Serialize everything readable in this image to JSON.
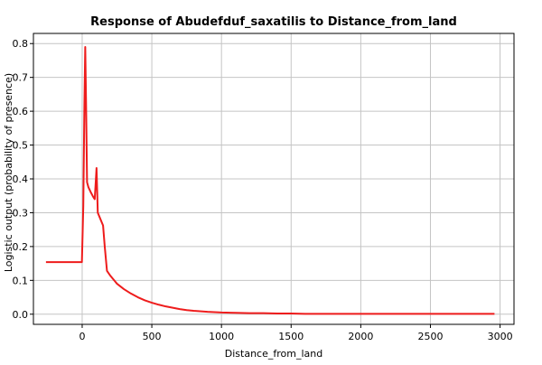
{
  "chart_data": {
    "type": "line",
    "title": "Response of Abudefduf_saxatilis to Distance_from_land",
    "xlabel": "Distance_from_land",
    "ylabel": "Logistic output (probability of presence)",
    "xlim": [
      -350,
      3100
    ],
    "ylim": [
      -0.03,
      0.83
    ],
    "xticks": [
      0,
      500,
      1000,
      1500,
      2000,
      2500,
      3000
    ],
    "yticks": [
      0.0,
      0.1,
      0.2,
      0.3,
      0.4,
      0.5,
      0.6,
      0.7,
      0.8
    ],
    "xtick_labels": [
      "0",
      "500",
      "1000",
      "1500",
      "2000",
      "2500",
      "3000"
    ],
    "ytick_labels": [
      "0.0",
      "0.1",
      "0.2",
      "0.3",
      "0.4",
      "0.5",
      "0.6",
      "0.7",
      "0.8"
    ],
    "grid": true,
    "series": [
      {
        "color": "#ee1c1c",
        "x": [
          -260,
          -2,
          8,
          16,
          22,
          28,
          35,
          45,
          60,
          75,
          85,
          90,
          98,
          103,
          108,
          112,
          150,
          162,
          178,
          200,
          250,
          300,
          350,
          400,
          450,
          500,
          550,
          600,
          650,
          700,
          750,
          800,
          900,
          1000,
          1100,
          1200,
          1300,
          1400,
          1500,
          1600,
          1800,
          2000,
          2200,
          2400,
          2600,
          2800,
          2960
        ],
        "y": [
          0.154,
          0.154,
          0.32,
          0.62,
          0.79,
          0.62,
          0.39,
          0.375,
          0.362,
          0.35,
          0.343,
          0.34,
          0.395,
          0.432,
          0.36,
          0.3,
          0.262,
          0.2,
          0.128,
          0.115,
          0.09,
          0.074,
          0.061,
          0.05,
          0.041,
          0.034,
          0.028,
          0.023,
          0.019,
          0.015,
          0.012,
          0.01,
          0.007,
          0.005,
          0.004,
          0.003,
          0.003,
          0.002,
          0.002,
          0.001,
          0.001,
          0.001,
          0.001,
          0.001,
          0.001,
          0.001,
          0.001
        ]
      }
    ]
  }
}
